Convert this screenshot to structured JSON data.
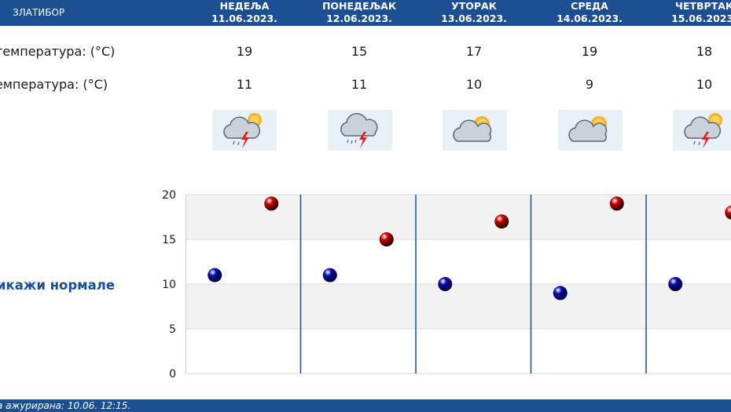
{
  "header": {
    "station": "ЗЛАТИБОР",
    "days": [
      {
        "name": "НЕДЕЉА",
        "date": "11.06.2023."
      },
      {
        "name": "ПОНЕДЕЉАК",
        "date": "12.06.2023."
      },
      {
        "name": "УТОРАК",
        "date": "13.06.2023."
      },
      {
        "name": "СРЕДА",
        "date": "14.06.2023."
      },
      {
        "name": "ЧЕТВРТАК",
        "date": "15.06.2023."
      }
    ]
  },
  "rows": {
    "max_label": "температура: (°C)",
    "min_label": "емпература: (°C)",
    "icon_label": ":"
  },
  "max_temps": [
    19,
    15,
    17,
    19,
    18
  ],
  "min_temps": [
    11,
    11,
    10,
    9,
    10
  ],
  "icons": [
    "partly-cloudy-thunderstorm-icon",
    "cloudy-thunderstorm-icon",
    "partly-cloudy-icon",
    "partly-cloudy-icon",
    "partly-cloudy-thunderstorm-icon"
  ],
  "normals_toggle": "икажи нормале",
  "footer": {
    "updated": "а ажурирана:  10.06.  12:15."
  },
  "colors": {
    "header_bg": "#1b4f92",
    "max_marker": "#cc0000",
    "min_marker": "#0a0ab0"
  },
  "chart_data": {
    "type": "scatter",
    "title": "",
    "xlabel": "",
    "ylabel": "",
    "ylim": [
      0,
      20
    ],
    "y_ticks": [
      "0",
      "5",
      "10",
      "15",
      "20"
    ],
    "categories": [
      "11.06.2023.",
      "12.06.2023.",
      "13.06.2023.",
      "14.06.2023.",
      "15.06.2023."
    ],
    "series": [
      {
        "values": [
          19,
          15,
          17,
          19,
          18
        ],
        "color": "#cc0000"
      },
      {
        "values": [
          11,
          11,
          10,
          9,
          10
        ],
        "color": "#0a0ab0"
      }
    ],
    "grid": true
  }
}
